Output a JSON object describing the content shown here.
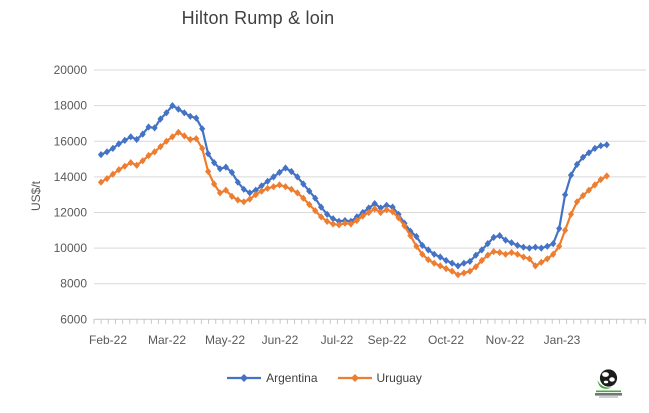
{
  "title": "Hilton Rump & loin",
  "chart_data": {
    "type": "line",
    "title": "Hilton Rump & loin",
    "xlabel": "",
    "ylabel": "US$/t",
    "ylim": [
      6000,
      20000
    ],
    "y_tick_interval": 2000,
    "y_ticks": [
      "6000",
      "8000",
      "10000",
      "12000",
      "14000",
      "16000",
      "18000",
      "20000"
    ],
    "x_tick_labels": [
      "Feb-22",
      "Mar-22",
      "May-22",
      "Jun-22",
      "Jul-22",
      "Sep-22",
      "Oct-22",
      "Nov-22",
      "Jan-23"
    ],
    "grid": "horizontal",
    "legend_position": "bottom",
    "marker": "diamond",
    "series": [
      {
        "name": "Argentina",
        "color": "#4472C4",
        "marker": "diamond",
        "values": [
          15250,
          15400,
          15600,
          15850,
          16050,
          16250,
          16100,
          16400,
          16800,
          16750,
          17250,
          17600,
          18000,
          17800,
          17600,
          17400,
          17300,
          16700,
          15300,
          14800,
          14450,
          14550,
          14250,
          13700,
          13300,
          13100,
          13250,
          13500,
          13750,
          14000,
          14250,
          14500,
          14300,
          14000,
          13600,
          13200,
          12800,
          12300,
          11900,
          11650,
          11500,
          11550,
          11500,
          11750,
          12000,
          12250,
          12500,
          12250,
          12400,
          12300,
          11900,
          11400,
          10950,
          10650,
          10150,
          9900,
          9650,
          9500,
          9300,
          9150,
          9000,
          9150,
          9250,
          9600,
          9900,
          10250,
          10600,
          10700,
          10450,
          10300,
          10150,
          10050,
          10000,
          10050,
          10000,
          10100,
          10250,
          11100,
          13000,
          14100,
          14700,
          15100,
          15350,
          15600,
          15750,
          15800
        ]
      },
      {
        "name": "Uruguay",
        "color": "#ED7D31",
        "marker": "diamond",
        "values": [
          13700,
          13900,
          14150,
          14400,
          14600,
          14800,
          14650,
          14900,
          15200,
          15400,
          15700,
          16000,
          16250,
          16500,
          16300,
          16100,
          16150,
          15600,
          14300,
          13600,
          13100,
          13250,
          12900,
          12700,
          12600,
          12750,
          13000,
          13200,
          13350,
          13450,
          13550,
          13450,
          13300,
          13100,
          12800,
          12450,
          12100,
          11750,
          11500,
          11350,
          11300,
          11400,
          11350,
          11550,
          11800,
          12000,
          12200,
          12000,
          12150,
          12050,
          11700,
          11250,
          10700,
          10100,
          9650,
          9350,
          9150,
          9000,
          8850,
          8700,
          8500,
          8600,
          8700,
          8950,
          9300,
          9600,
          9800,
          9750,
          9650,
          9750,
          9650,
          9500,
          9400,
          9000,
          9200,
          9400,
          9650,
          10100,
          11000,
          11900,
          12600,
          12950,
          13250,
          13550,
          13850,
          14050
        ]
      }
    ]
  },
  "footer": {
    "logo_icon": "globe-icon"
  },
  "colors": {
    "gridline": "#D9D9D9",
    "axis_line": "#C6C6C6",
    "axis_text": "#595959",
    "title_text": "#404040",
    "argentina": "#4472C4",
    "uruguay": "#ED7D31",
    "logo_green": "#4aa546"
  }
}
